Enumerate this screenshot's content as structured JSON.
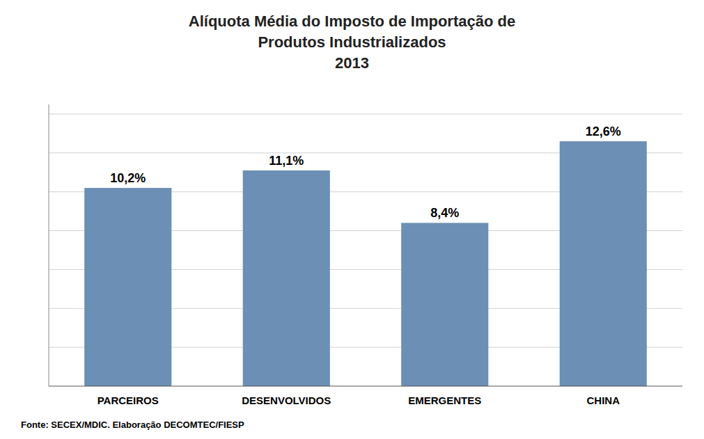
{
  "chart_data": {
    "type": "bar",
    "title": [
      "Alíquota Média do Imposto de Importação de",
      "Produtos Industrializados",
      "2013"
    ],
    "categories": [
      "PARCEIROS",
      "DESENVOLVIDOS",
      "EMERGENTES",
      "CHINA"
    ],
    "values": [
      10.2,
      11.1,
      8.4,
      12.6
    ],
    "value_labels": [
      "10,2%",
      "11,1%",
      "8,4%",
      "12,6%"
    ],
    "color": "#6b8fb5",
    "ylim": [
      0,
      14.5
    ],
    "yticks": [
      2,
      4,
      6,
      8,
      10,
      12,
      14
    ],
    "grid": true,
    "data_labels": true,
    "tick_labels": "x",
    "annotations": [
      "Fonte: SECEX/MDIC. Elaboração DECOMTEC/FIESP"
    ]
  }
}
